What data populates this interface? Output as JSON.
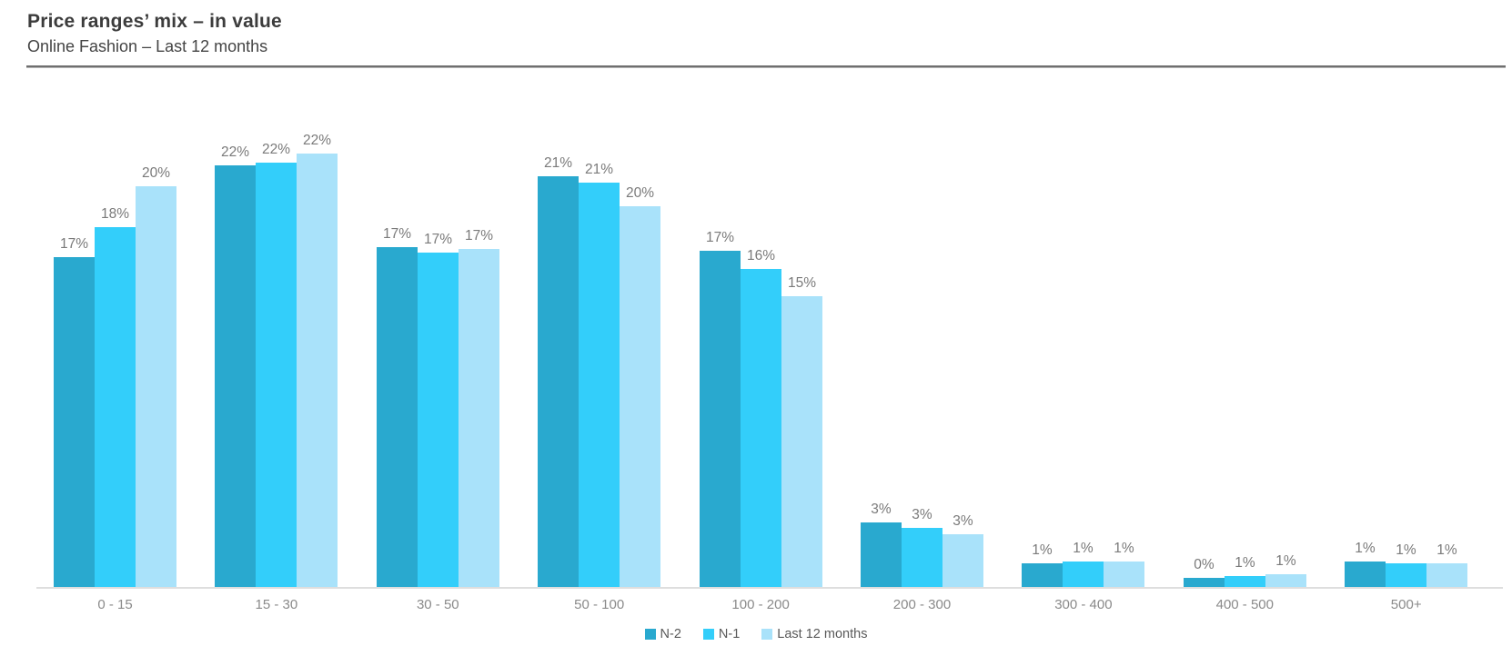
{
  "header": {
    "title": "Price ranges’ mix – in value",
    "subtitle": "Online Fashion – Last 12 months"
  },
  "chart_data": {
    "type": "bar",
    "title": "Price ranges’ mix – in value",
    "subtitle": "Online Fashion – Last 12 months",
    "categories": [
      "0 - 15",
      "15 - 30",
      "30 - 50",
      "50 - 100",
      "100 - 200",
      "200 - 300",
      "300 - 400",
      "400 - 500",
      "500+"
    ],
    "series": [
      {
        "name": "N-2",
        "color": "#29A9CF",
        "values": [
          17,
          22,
          17,
          21,
          17,
          3,
          1,
          0,
          1
        ],
        "labels": [
          "17%",
          "22%",
          "17%",
          "21%",
          "17%",
          "3%",
          "1%",
          "0%",
          "1%"
        ],
        "bar_heights_pct": [
          16.9,
          21.6,
          17.4,
          21.0,
          17.2,
          3.3,
          1.2,
          0.45,
          1.3
        ]
      },
      {
        "name": "N-1",
        "color": "#33CEFA",
        "values": [
          18,
          22,
          17,
          21,
          16,
          3,
          1,
          1,
          1
        ],
        "labels": [
          "18%",
          "22%",
          "17%",
          "21%",
          "16%",
          "3%",
          "1%",
          "1%",
          "1%"
        ],
        "bar_heights_pct": [
          18.4,
          21.7,
          17.1,
          20.7,
          16.3,
          3.0,
          1.3,
          0.56,
          1.2
        ]
      },
      {
        "name": "Last 12 months",
        "color": "#A9E2FA",
        "values": [
          20,
          22,
          17,
          20,
          15,
          3,
          1,
          1,
          1
        ],
        "labels": [
          "20%",
          "22%",
          "17%",
          "20%",
          "15%",
          "3%",
          "1%",
          "1%",
          "1%"
        ],
        "bar_heights_pct": [
          20.5,
          22.2,
          17.3,
          19.5,
          14.9,
          2.7,
          1.3,
          0.65,
          1.2
        ]
      }
    ],
    "value_suffix": "%",
    "ylim": [
      0,
      25
    ],
    "grid": false,
    "y_axis_visible": false,
    "legend_position": "bottom",
    "legend_entries": [
      "N-2",
      "N-1",
      "Last 12 months"
    ]
  }
}
